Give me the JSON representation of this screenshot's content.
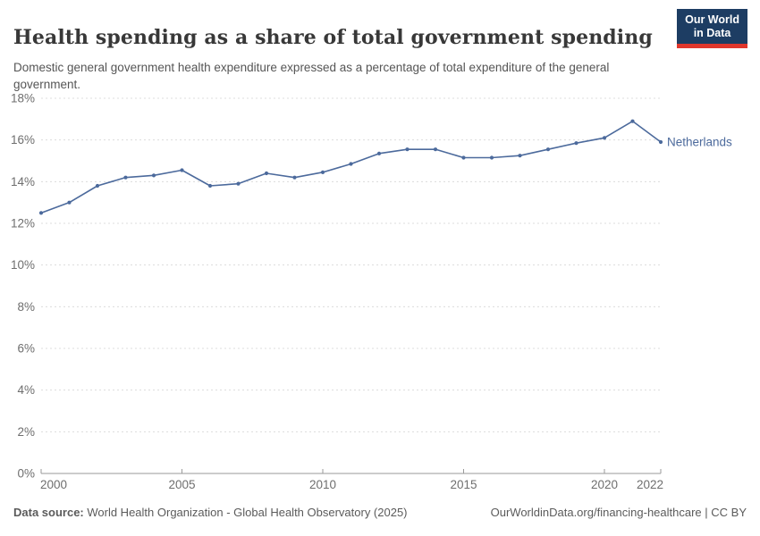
{
  "header": {
    "title": "Health spending as a share of total government spending",
    "subtitle": "Domestic general government health expenditure expressed as a percentage of total expenditure of the general government.",
    "logo": {
      "line1": "Our World",
      "line2": "in Data"
    }
  },
  "chart_data": {
    "type": "line",
    "title": "Health spending as a share of total government spending",
    "xlabel": "",
    "ylabel": "",
    "ylim": [
      0,
      18
    ],
    "y_ticks": [
      0,
      2,
      4,
      6,
      8,
      10,
      12,
      14,
      16,
      18
    ],
    "y_tick_suffix": "%",
    "x_ticks": [
      2000,
      2005,
      2010,
      2015,
      2020,
      2022
    ],
    "grid": "horizontal-dashed",
    "legend_position": "end-of-line-label",
    "series": [
      {
        "name": "Netherlands",
        "color": "#4C6A9C",
        "x": [
          2000,
          2001,
          2002,
          2003,
          2004,
          2005,
          2006,
          2007,
          2008,
          2009,
          2010,
          2011,
          2012,
          2013,
          2014,
          2015,
          2016,
          2017,
          2018,
          2019,
          2020,
          2021,
          2022
        ],
        "values": [
          12.5,
          13.0,
          13.8,
          14.2,
          14.3,
          14.55,
          13.8,
          13.9,
          14.4,
          14.2,
          14.45,
          14.85,
          15.35,
          15.55,
          15.55,
          15.15,
          15.15,
          15.25,
          15.55,
          15.85,
          16.1,
          16.9,
          15.9
        ]
      }
    ]
  },
  "footer": {
    "source_label": "Data source:",
    "source_text": " World Health Organization - Global Health Observatory (2025)",
    "link_text": "OurWorldinData.org/financing-healthcare | CC BY"
  },
  "colors": {
    "series_blue": "#4C6A9C",
    "logo_navy": "#1d3d63",
    "logo_red": "#e0362c",
    "grid": "#dcdcdc",
    "axis": "#9a9a9a",
    "tick_text": "#6e6e6e",
    "title_text": "#383838",
    "subtitle_text": "#555555",
    "footer_text": "#5b5b5b"
  }
}
